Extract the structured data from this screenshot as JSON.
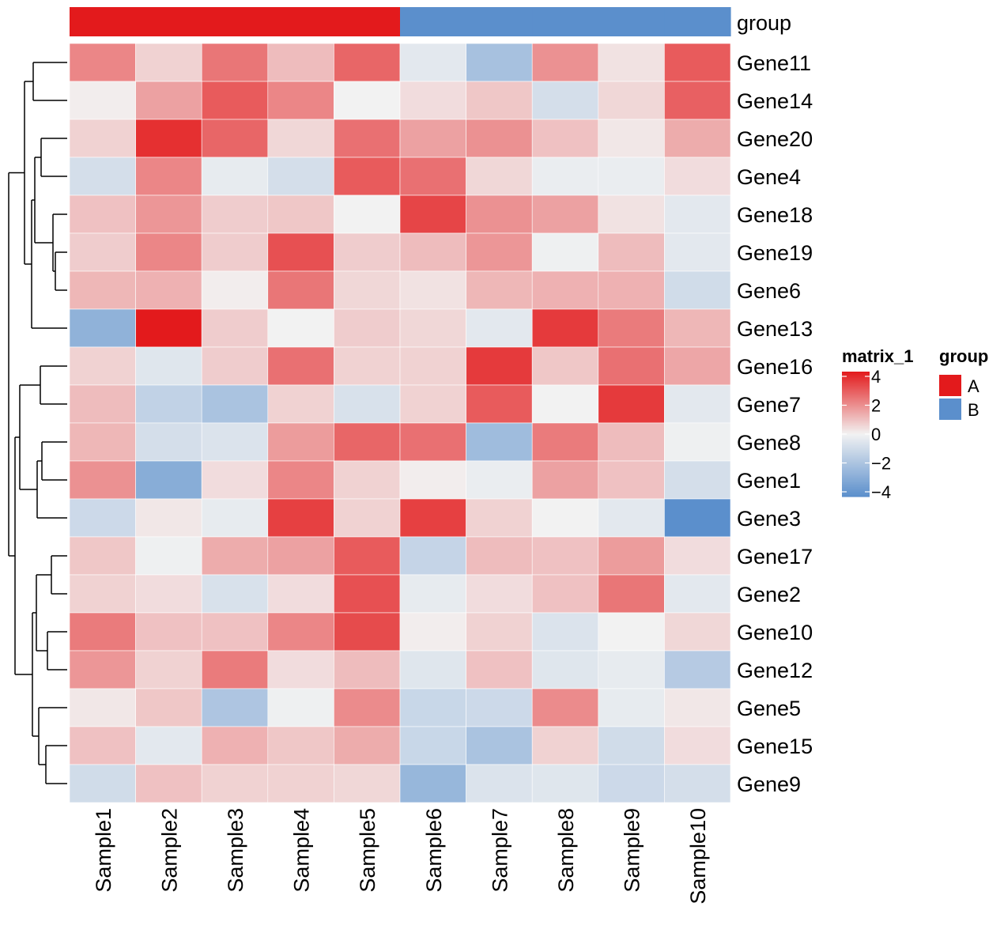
{
  "chart_data": {
    "type": "heatmap",
    "rows": [
      "Gene11",
      "Gene14",
      "Gene20",
      "Gene4",
      "Gene18",
      "Gene19",
      "Gene6",
      "Gene13",
      "Gene16",
      "Gene7",
      "Gene8",
      "Gene1",
      "Gene3",
      "Gene17",
      "Gene2",
      "Gene10",
      "Gene12",
      "Gene5",
      "Gene15",
      "Gene9"
    ],
    "columns": [
      "Sample1",
      "Sample2",
      "Sample3",
      "Sample4",
      "Sample5",
      "Sample6",
      "Sample7",
      "Sample8",
      "Sample9",
      "Sample10"
    ],
    "values": [
      [
        2.0,
        0.6,
        2.3,
        1.0,
        2.6,
        -0.4,
        -2.0,
        1.8,
        0.3,
        2.8
      ],
      [
        0.1,
        1.5,
        2.8,
        2.0,
        0.0,
        0.4,
        0.8,
        -0.8,
        0.5,
        2.7
      ],
      [
        0.6,
        3.6,
        2.6,
        0.5,
        2.4,
        1.5,
        1.8,
        0.9,
        0.2,
        1.3
      ],
      [
        -0.8,
        2.0,
        -0.3,
        -0.8,
        2.8,
        2.4,
        0.5,
        -0.2,
        -0.2,
        0.4
      ],
      [
        0.9,
        1.7,
        0.7,
        0.8,
        0.0,
        3.2,
        1.8,
        1.5,
        0.3,
        -0.4
      ],
      [
        0.7,
        2.0,
        0.7,
        3.0,
        0.7,
        1.0,
        1.7,
        -0.1,
        1.0,
        -0.4
      ],
      [
        1.1,
        1.2,
        0.1,
        2.3,
        0.5,
        0.3,
        1.1,
        1.2,
        1.2,
        -0.9
      ],
      [
        -2.6,
        4.3,
        0.7,
        0.0,
        0.7,
        0.5,
        -0.4,
        3.4,
        2.2,
        1.1
      ],
      [
        0.6,
        -0.5,
        0.7,
        2.4,
        0.6,
        0.6,
        3.4,
        0.8,
        2.4,
        1.4
      ],
      [
        1.0,
        -1.3,
        -1.9,
        0.6,
        -0.7,
        0.6,
        2.8,
        0.0,
        3.4,
        -0.4
      ],
      [
        1.1,
        -0.8,
        -0.6,
        1.6,
        2.6,
        2.4,
        -2.2,
        2.2,
        1.0,
        -0.1
      ],
      [
        1.8,
        -2.8,
        0.4,
        2.0,
        0.6,
        0.1,
        -0.2,
        1.5,
        0.9,
        -0.8
      ],
      [
        -1.0,
        0.2,
        -0.3,
        3.3,
        0.6,
        3.3,
        0.6,
        0.0,
        -0.4,
        -4.0
      ],
      [
        0.8,
        -0.1,
        1.3,
        1.5,
        2.8,
        -1.2,
        1.0,
        0.9,
        1.6,
        0.4
      ],
      [
        0.6,
        0.4,
        -0.7,
        0.4,
        3.0,
        -0.3,
        0.4,
        0.9,
        2.3,
        -0.4
      ],
      [
        2.2,
        0.9,
        0.9,
        2.0,
        3.1,
        0.1,
        0.6,
        -0.6,
        0.0,
        0.5
      ],
      [
        1.7,
        0.6,
        2.2,
        0.4,
        1.0,
        -0.5,
        0.9,
        -0.5,
        -0.3,
        -1.6
      ],
      [
        0.2,
        0.8,
        -1.8,
        -0.1,
        1.9,
        -1.1,
        -1.0,
        1.9,
        -0.3,
        0.2
      ],
      [
        0.9,
        -0.4,
        1.2,
        0.8,
        1.3,
        -1.1,
        -1.9,
        0.6,
        -0.9,
        0.4
      ],
      [
        -0.9,
        0.9,
        0.6,
        0.6,
        0.5,
        -2.4,
        -0.6,
        -0.5,
        -1.0,
        -0.8
      ]
    ],
    "column_groups": [
      "A",
      "A",
      "A",
      "A",
      "A",
      "B",
      "B",
      "B",
      "B",
      "B"
    ],
    "group_annotation_title": "group",
    "group_colors": {
      "A": "#e31a1c",
      "B": "#5b8fcc"
    },
    "color_scale": {
      "title": "matrix_1",
      "range": [
        -4,
        4
      ],
      "ticks": [
        4,
        2,
        0,
        -2,
        -4
      ],
      "tick_labels": [
        "4",
        "2",
        "0",
        "−2",
        "−4"
      ],
      "low_color": "#5b8fcc",
      "mid_color": "#f2f2f2",
      "high_color": "#e31a1c"
    },
    "legend_placement": "right",
    "row_dendrogram": true
  }
}
